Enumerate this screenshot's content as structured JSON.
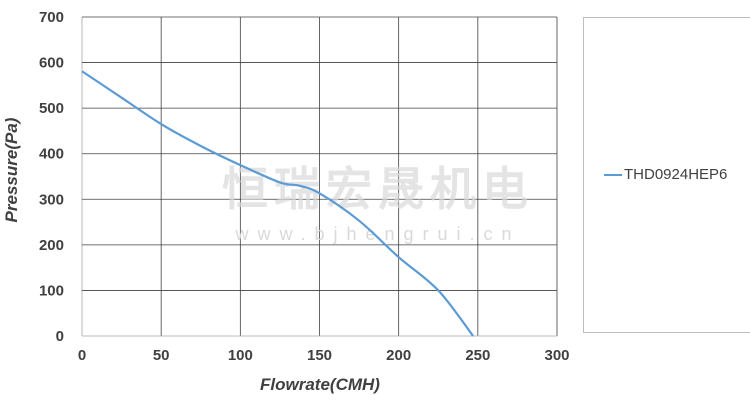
{
  "chart_data": {
    "type": "line",
    "xlabel": "Flowrate(CMH)",
    "ylabel": "Pressure(Pa)",
    "xlim": [
      0,
      300
    ],
    "ylim": [
      0,
      700
    ],
    "xticks": [
      0,
      50,
      100,
      150,
      200,
      250,
      300
    ],
    "yticks": [
      0,
      100,
      200,
      300,
      400,
      500,
      600,
      700
    ],
    "grid": true,
    "legend_placement": "right",
    "series": [
      {
        "name": "THD0924HEP6",
        "color": "#5b9bd5",
        "x": [
          0,
          25,
          50,
          75,
          100,
          125,
          137,
          150,
          175,
          200,
          225,
          247
        ],
        "y": [
          581,
          523,
          465,
          417,
          375,
          337,
          330,
          313,
          253,
          173,
          100,
          0
        ]
      }
    ]
  },
  "watermark": {
    "text": "恒瑞宏晟机电",
    "url": "www.bjhengrui.cn"
  }
}
